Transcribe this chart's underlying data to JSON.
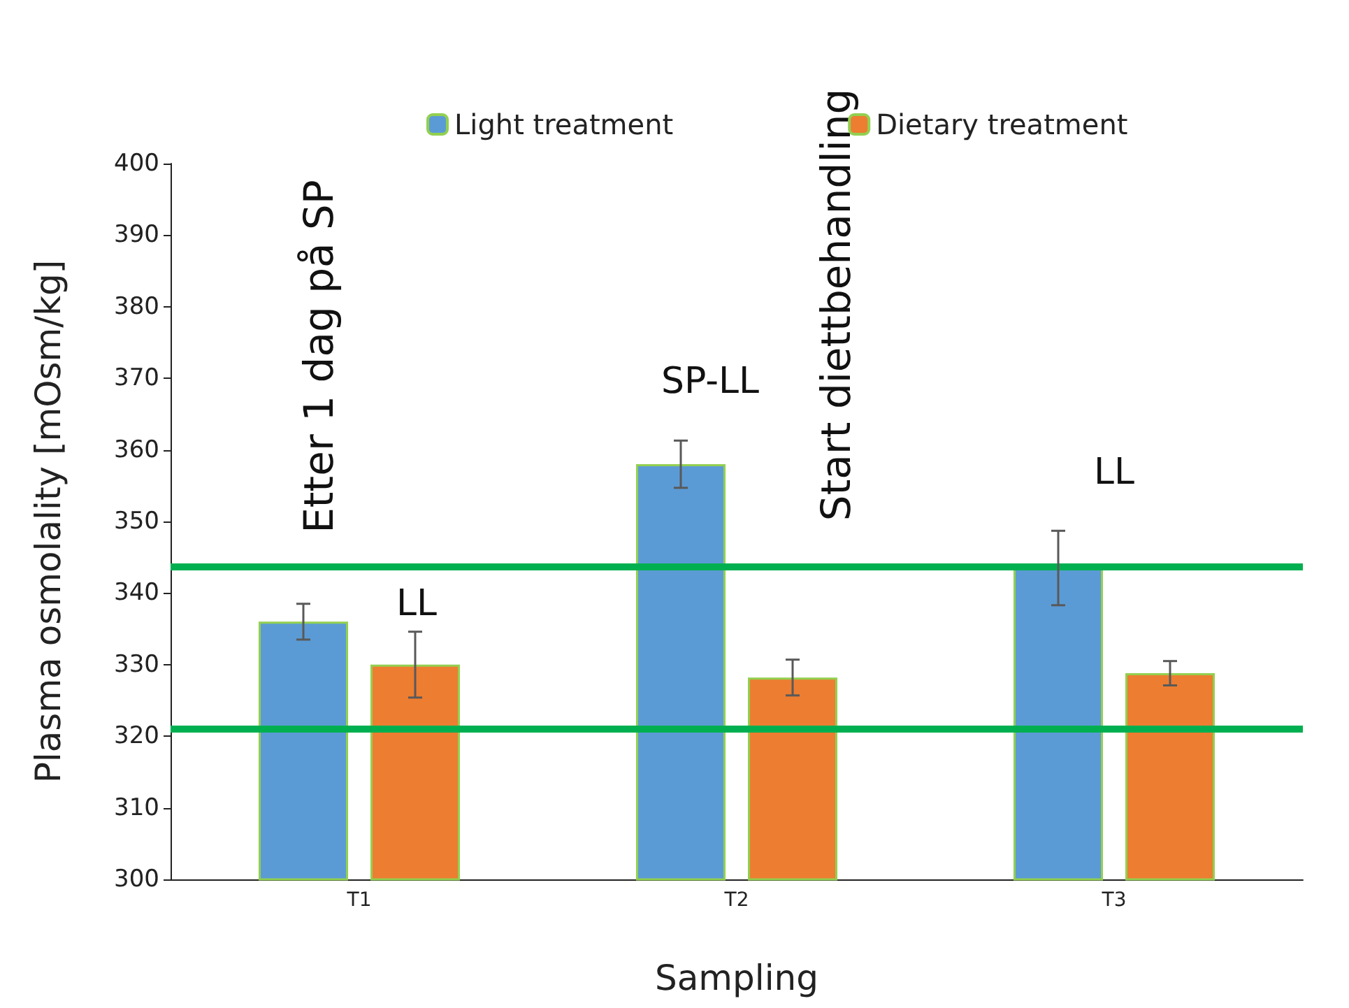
{
  "chart_data": {
    "type": "bar",
    "xlabel": "Sampling",
    "ylabel": "Plasma osmolality [mOsm/kg]",
    "categories": [
      "T1",
      "T2",
      "T3"
    ],
    "series": [
      {
        "name": "Light treatment",
        "color": "#5b9bd5",
        "values": [
          336,
          358,
          343.5
        ],
        "errors": [
          2.5,
          3.3,
          5.2
        ]
      },
      {
        "name": "Dietary treatment",
        "color": "#ed7d31",
        "values": [
          330,
          328.2,
          328.8
        ],
        "errors": [
          4.6,
          2.5,
          1.7
        ]
      }
    ],
    "ylim": [
      300,
      400
    ],
    "yticks": [
      300,
      310,
      320,
      330,
      340,
      350,
      360,
      370,
      380,
      390,
      400
    ],
    "grid": false,
    "legend": "top",
    "ref_lines": [
      {
        "axis": "y",
        "value": 343.7,
        "color": "#00b050"
      },
      {
        "axis": "y",
        "value": 321,
        "color": "#00b050"
      }
    ],
    "annotations": [
      "Etter 1 dag på SP",
      "LL",
      "SP-LL",
      "Start diettbehandling",
      "LL"
    ]
  }
}
